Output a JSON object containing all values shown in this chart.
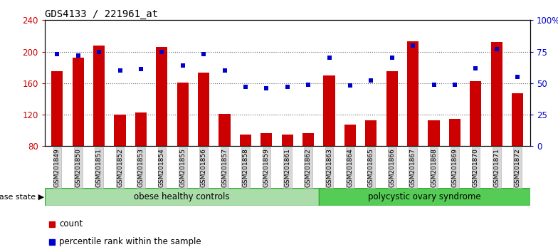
{
  "title": "GDS4133 / 221961_at",
  "samples": [
    "GSM201849",
    "GSM201850",
    "GSM201851",
    "GSM201852",
    "GSM201853",
    "GSM201854",
    "GSM201855",
    "GSM201856",
    "GSM201857",
    "GSM201858",
    "GSM201859",
    "GSM201861",
    "GSM201862",
    "GSM201863",
    "GSM201864",
    "GSM201865",
    "GSM201866",
    "GSM201867",
    "GSM201868",
    "GSM201869",
    "GSM201870",
    "GSM201871",
    "GSM201872"
  ],
  "counts": [
    175,
    192,
    208,
    120,
    123,
    206,
    161,
    173,
    121,
    95,
    97,
    95,
    97,
    170,
    107,
    113,
    175,
    213,
    113,
    115,
    163,
    212,
    147
  ],
  "percentiles": [
    73,
    72,
    75,
    60,
    61,
    75,
    64,
    73,
    60,
    47,
    46,
    47,
    49,
    70,
    48,
    52,
    70,
    80,
    49,
    49,
    62,
    77,
    55
  ],
  "group1_label": "obese healthy controls",
  "group1_count": 13,
  "group2_label": "polycystic ovary syndrome",
  "group2_count": 10,
  "bar_color": "#cc0000",
  "dot_color": "#0000cc",
  "ylim_left": [
    80,
    240
  ],
  "ylim_right": [
    0,
    100
  ],
  "yticks_left": [
    80,
    120,
    160,
    200,
    240
  ],
  "yticks_right": [
    0,
    25,
    50,
    75,
    100
  ],
  "background_color": "#ffffff",
  "plot_bg_color": "#ffffff",
  "group1_bg": "#aaddaa",
  "group2_bg": "#55cc55",
  "ticklabel_bg": "#d8d8d8",
  "legend_count_label": "count",
  "legend_pct_label": "percentile rank within the sample"
}
